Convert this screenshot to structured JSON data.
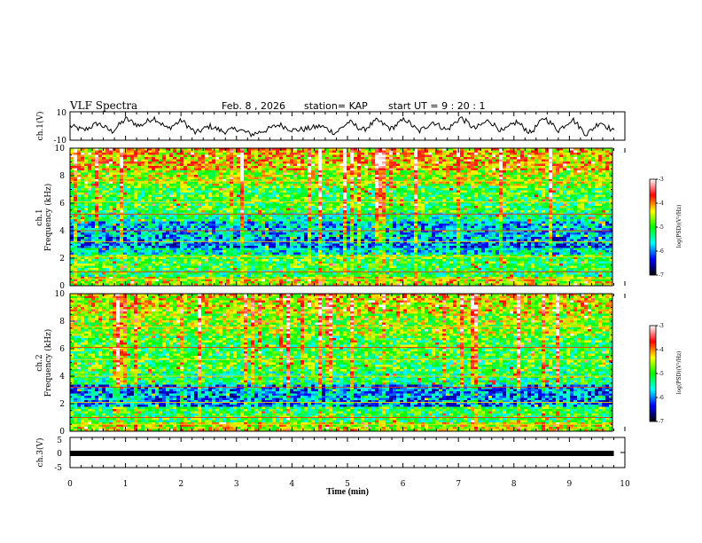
{
  "header": {
    "title": "VLF Spectra",
    "date": "Feb. 8  , 2026",
    "station": "station= KAP",
    "start_ut": "start  UT  =   9  : 20 : 1"
  },
  "colors": {
    "trace": "#000000",
    "colormap": [
      "#000000",
      "#0000ff",
      "#00ffff",
      "#00ff00",
      "#ffff00",
      "#ff0000",
      "#ffffff"
    ]
  },
  "chart_data": [
    {
      "id": "ch1v",
      "type": "line",
      "ylabel": "ch.1(V)",
      "ylim": [
        -10,
        10
      ],
      "yticks": [
        "10",
        "-10"
      ],
      "xlim": [
        0,
        10
      ],
      "description_values": [
        0,
        -3,
        2,
        -4,
        5,
        0,
        6,
        -2,
        4,
        -5,
        0,
        -4,
        -2,
        -6,
        -3,
        1,
        -3,
        -2,
        0,
        -5,
        3,
        -3,
        4,
        -2,
        5,
        -4,
        3,
        -3,
        6,
        -2,
        4,
        -4,
        3,
        -5,
        6,
        -3,
        5,
        -6,
        3,
        -4
      ]
    },
    {
      "id": "ch1spec",
      "type": "heatmap",
      "ylabel": "ch.1",
      "ylabel2": "Frequency  (kHz)",
      "ylim": [
        0,
        10
      ],
      "yticks": [
        "10",
        "8",
        "6",
        "4",
        "2",
        "0"
      ],
      "xlim": [
        0,
        10
      ],
      "colorbar": {
        "ticks": [
          "-3",
          "-4",
          "-5",
          "-6",
          "-7"
        ],
        "range": [
          -7,
          -3
        ],
        "label": "log(PSD)(V²/Hz)"
      },
      "bands": [
        {
          "from": 0.0,
          "to": 0.6,
          "level": -4.5
        },
        {
          "from": 0.6,
          "to": 1.2,
          "level": -5.2
        },
        {
          "from": 1.2,
          "to": 2.2,
          "level": -5.0
        },
        {
          "from": 2.2,
          "to": 2.8,
          "level": -5.6
        },
        {
          "from": 2.8,
          "to": 3.6,
          "level": -6.0
        },
        {
          "from": 3.6,
          "to": 4.6,
          "level": -5.8
        },
        {
          "from": 4.6,
          "to": 5.4,
          "level": -5.3
        },
        {
          "from": 5.4,
          "to": 7.2,
          "level": -5.0
        },
        {
          "from": 7.2,
          "to": 8.4,
          "level": -4.6
        },
        {
          "from": 8.4,
          "to": 10.0,
          "level": -4.2
        }
      ]
    },
    {
      "id": "ch2spec",
      "type": "heatmap",
      "ylabel": "ch.2",
      "ylabel2": "Frequency  (kHz)",
      "ylim": [
        0,
        10
      ],
      "yticks": [
        "10",
        "8",
        "6",
        "4",
        "2",
        "0"
      ],
      "xlim": [
        0,
        10
      ],
      "colorbar": {
        "ticks": [
          "-3",
          "-4",
          "-5",
          "-6",
          "-7"
        ],
        "range": [
          -7,
          -3
        ],
        "label": "log(PSD)(V²/Hz)"
      },
      "bands": [
        {
          "from": 0.0,
          "to": 0.6,
          "level": -4.5
        },
        {
          "from": 0.6,
          "to": 1.8,
          "level": -5.1
        },
        {
          "from": 1.8,
          "to": 3.4,
          "level": -6.0
        },
        {
          "from": 3.4,
          "to": 4.4,
          "level": -5.2
        },
        {
          "from": 4.4,
          "to": 7.0,
          "level": -5.0
        },
        {
          "from": 7.0,
          "to": 8.6,
          "level": -4.7
        },
        {
          "from": 8.6,
          "to": 10.0,
          "level": -4.4
        }
      ]
    },
    {
      "id": "ch3v",
      "type": "line",
      "ylabel": "ch.3(V)",
      "ylim": [
        -5,
        5
      ],
      "yticks": [
        "5",
        "0",
        "-5"
      ],
      "xlim": [
        0,
        10
      ],
      "xlabel": "Time  (min)",
      "xticks": [
        "0",
        "1",
        "2",
        "3",
        "4",
        "5",
        "6",
        "7",
        "8",
        "9",
        "10"
      ],
      "trace_level": 0,
      "trace_end": 9.8
    }
  ]
}
